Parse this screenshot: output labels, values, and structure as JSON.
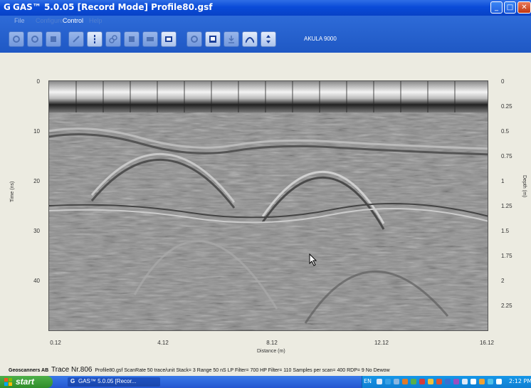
{
  "window": {
    "app_icon": "G",
    "title": "GAS™ 5.0.05 [Record Mode]   Profile80.gsf",
    "buttons": {
      "minimize": "_",
      "maximize": "□",
      "close": "✕"
    }
  },
  "menu": {
    "items": [
      "File",
      "Configure",
      "Control",
      "Help"
    ]
  },
  "toolbar": {
    "icons": [
      "settings-icon",
      "record-icon",
      "stop-icon",
      "edit-icon",
      "marker-icon",
      "link-icon",
      "save-icon",
      "comment-icon",
      "screen-icon",
      "circle-icon",
      "page-icon",
      "download-icon",
      "hyperbola-icon",
      "depth-icon"
    ],
    "device": "AKULA 9000"
  },
  "plot": {
    "left_axis": {
      "label": "Time (ns)",
      "ticks": [
        "0",
        "10",
        "20",
        "30",
        "40"
      ]
    },
    "right_axis": {
      "label": "Depth (m)",
      "ticks": [
        "0",
        "0.25",
        "0.5",
        "0.75",
        "1",
        "1.25",
        "1.5",
        "1.75",
        "2",
        "2.25"
      ]
    },
    "bottom_axis": {
      "label": "Distance (m)",
      "ticks": [
        "0.12",
        "4.12",
        "8.12",
        "12.12",
        "16.12"
      ]
    }
  },
  "status": {
    "company": "Geoscanners AB",
    "trace": "Trace Nr.806",
    "details": "Profile80.gsf  ScanRate 50 trace/unit  Stack= 3  Range 50 nS  LP Filter= 700  HP Filter= 110  Samples per scan= 400  RDP= 9  No Dewow"
  },
  "taskbar": {
    "start": "start",
    "task": "GAS™ 5.0.05 [Recor...",
    "language": "EN",
    "clock": "2:12 PM"
  },
  "colors": {
    "titlebar": "#0a4bd8",
    "toolbar": "#1f58c4",
    "start": "#2f8d2b",
    "tray": "#0f7ed2"
  }
}
